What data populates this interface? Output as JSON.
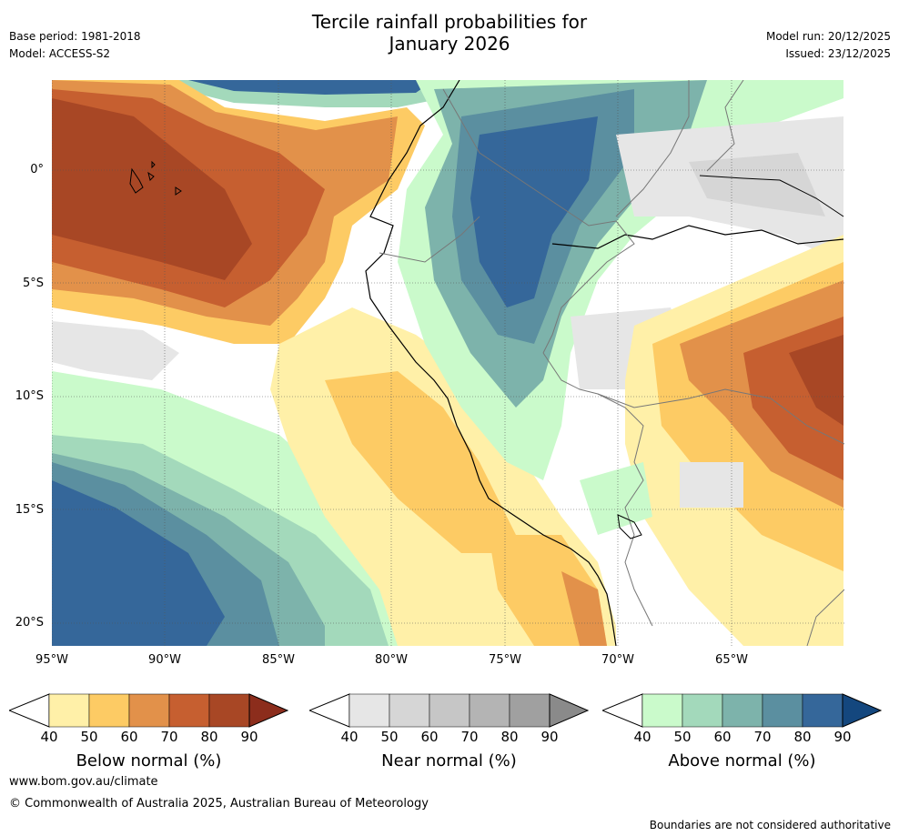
{
  "header": {
    "title_line1": "Tercile rainfall probabilities for",
    "title_line2": "January 2026",
    "base_period": "Base period: 1981-2018",
    "model": "Model: ACCESS-S2",
    "model_run": "Model run: 20/12/2025",
    "issued": "Issued: 23/12/2025"
  },
  "map": {
    "lat_labels": [
      "0°",
      "5°S",
      "10°S",
      "15°S",
      "20°S"
    ],
    "lon_labels": [
      "95°W",
      "90°W",
      "85°W",
      "80°W",
      "75°W",
      "70°W",
      "65°W"
    ],
    "lat_range": [
      -21,
      4
    ],
    "lon_range": [
      -95,
      -60
    ]
  },
  "legends": [
    {
      "name": "below",
      "title": "Below normal (%)",
      "ticks": [
        "40",
        "50",
        "60",
        "70",
        "80",
        "90"
      ],
      "colors": [
        "#fff0a8",
        "#fdcb64",
        "#e2914a",
        "#c65f30",
        "#a84725",
        "#8c2d1c"
      ]
    },
    {
      "name": "near",
      "title": "Near normal (%)",
      "ticks": [
        "40",
        "50",
        "60",
        "70",
        "80",
        "90"
      ],
      "colors": [
        "#e6e6e6",
        "#d6d6d6",
        "#c6c6c6",
        "#b4b4b4",
        "#a0a0a0",
        "#8a8a8a"
      ]
    },
    {
      "name": "above",
      "title": "Above normal (%)",
      "ticks": [
        "40",
        "50",
        "60",
        "70",
        "80",
        "90"
      ],
      "colors": [
        "#cafacb",
        "#a3d9bb",
        "#7db3ab",
        "#5b8fa0",
        "#35679a",
        "#14477e"
      ]
    }
  ],
  "footer": {
    "url": "www.bom.gov.au/climate",
    "copyright": "© Commonwealth of Australia 2025, Australian Bureau of Meteorology",
    "disclaimer": "Boundaries are not considered authoritative"
  }
}
